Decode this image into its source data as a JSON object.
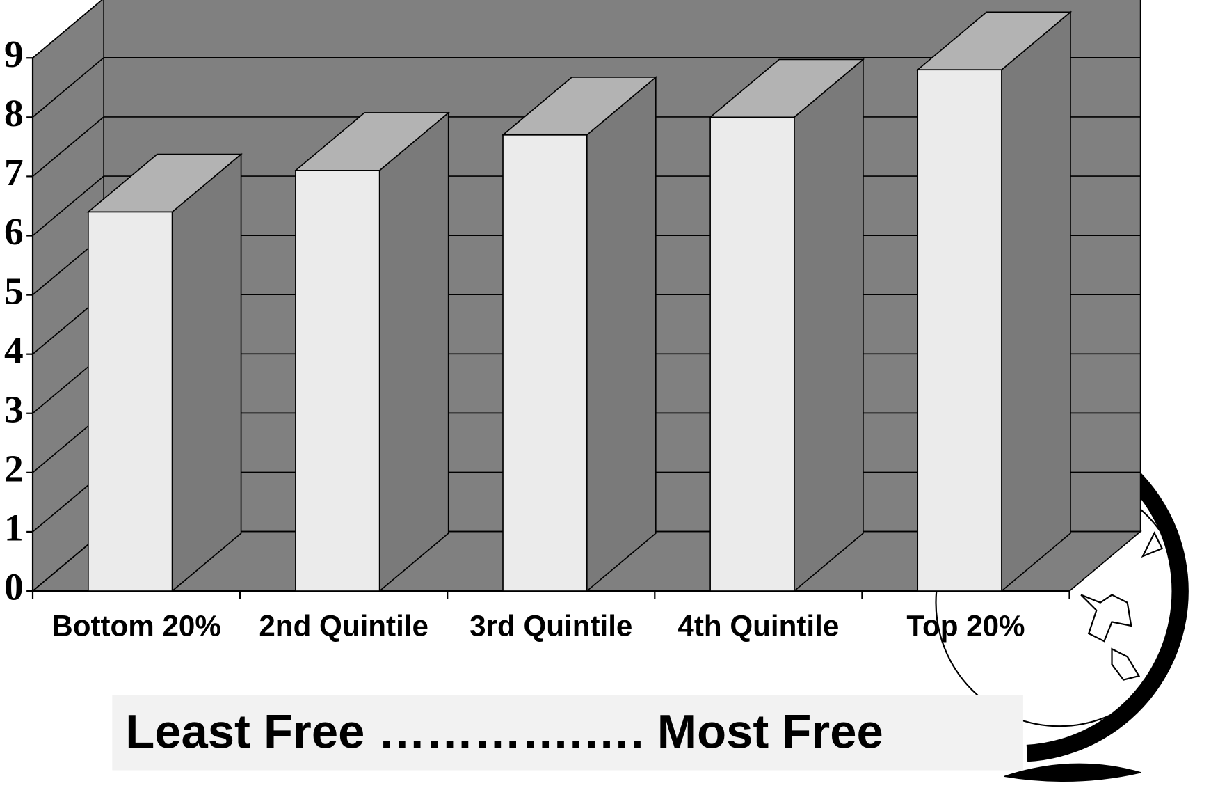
{
  "chart_data": {
    "type": "bar3d",
    "categories": [
      "Bottom 20%",
      "2nd Quintile",
      "3rd Quintile",
      "4th Quintile",
      "Top 20%"
    ],
    "values": [
      6.4,
      7.1,
      7.7,
      8.0,
      8.8
    ],
    "color": "#ebebeb",
    "ylim": [
      0,
      9
    ],
    "yticks": [
      0,
      1,
      2,
      3,
      4,
      5,
      6,
      7,
      8,
      9
    ],
    "grid": true,
    "annotation": "Least Free ………….…. Most Free"
  }
}
